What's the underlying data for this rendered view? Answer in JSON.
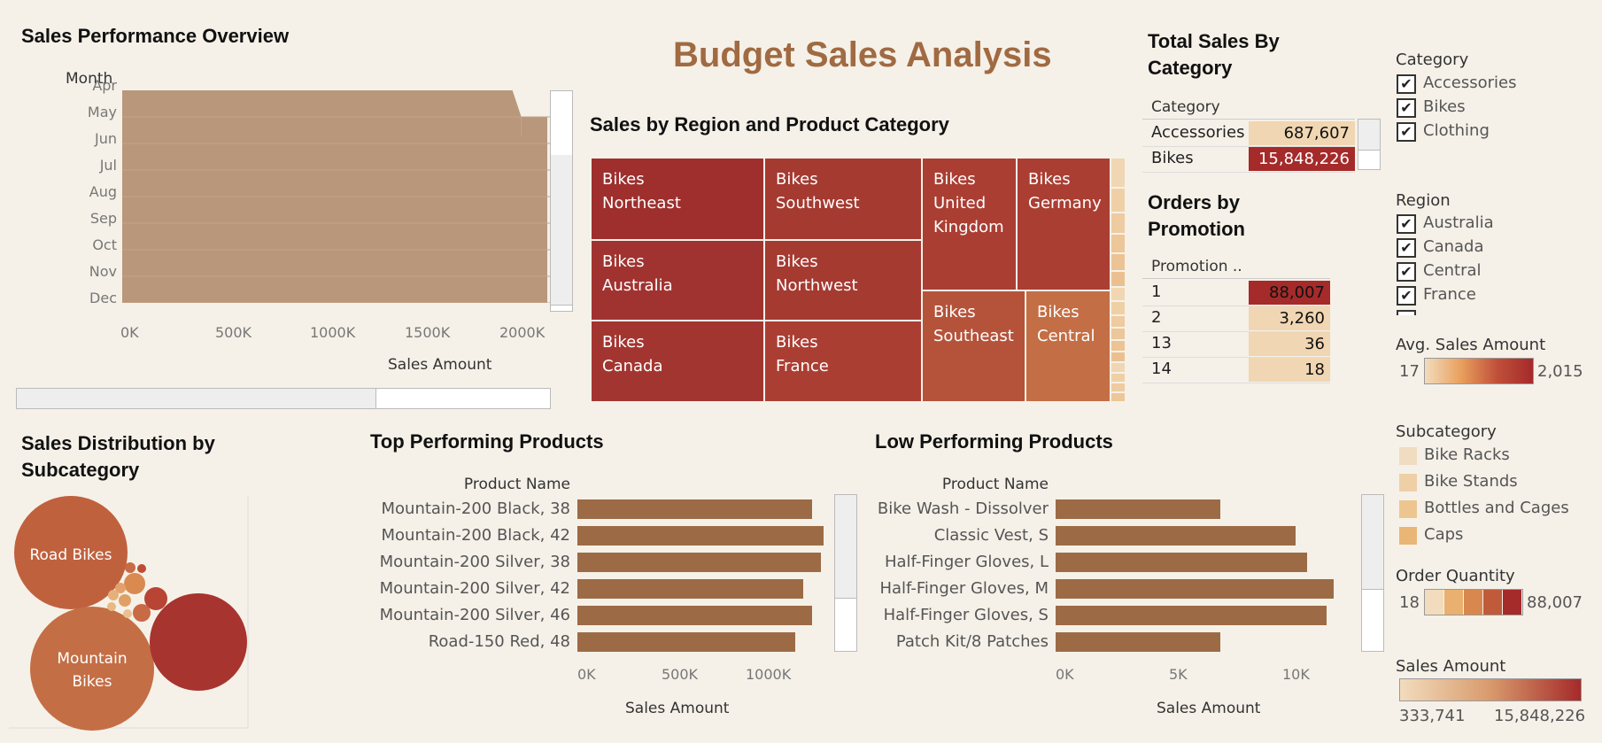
{
  "dashboard": {
    "title": "Budget Sales Analysis"
  },
  "performance": {
    "title": "Sales Performance Overview",
    "y_header": "Month",
    "months": [
      "Apr",
      "May",
      "Jun",
      "Jul",
      "Aug",
      "Sep",
      "Oct",
      "Nov",
      "Dec"
    ],
    "x_ticks": [
      "0K",
      "500K",
      "1000K",
      "1500K",
      "2000K"
    ],
    "x_title": "Sales Amount",
    "area_color": "#b9977a"
  },
  "treemap": {
    "title": "Sales by Region and Product Category",
    "cells": [
      {
        "label": "Bikes\nNortheast",
        "color": "#9e2f2d"
      },
      {
        "label": "Bikes\nSouthwest",
        "color": "#a53a31"
      },
      {
        "label": "Bikes\nUnited\nKingdom",
        "color": "#ab3e33"
      },
      {
        "label": "Bikes\nGermany",
        "color": "#ab3e33"
      },
      {
        "label": "Bikes\nAustralia",
        "color": "#a03330"
      },
      {
        "label": "Bikes\nNorthwest",
        "color": "#a53a31"
      },
      {
        "label": "Bikes\nCanada",
        "color": "#a33530"
      },
      {
        "label": "Bikes\nFrance",
        "color": "#ab3e33"
      },
      {
        "label": "Bikes\nSoutheast",
        "color": "#b5533a"
      },
      {
        "label": "Bikes\nCentral",
        "color": "#c46e45"
      }
    ]
  },
  "category_table": {
    "title_line1": "Total Sales By",
    "title_line2": "Category",
    "col_header": "Category",
    "rows": [
      {
        "name": "Accessories",
        "value": "687,607",
        "color": "#f0d6b2"
      },
      {
        "name": "Bikes",
        "value": "15,848,226",
        "color": "#a52a2a"
      }
    ]
  },
  "promotion_table": {
    "title_line1": "Orders by",
    "title_line2": "Promotion",
    "col_header": "Promotion ..",
    "rows": [
      {
        "name": "1",
        "value": "88,007",
        "color": "#a52a2a"
      },
      {
        "name": "2",
        "value": "3,260",
        "color": "#f0d6b2"
      },
      {
        "name": "13",
        "value": "36",
        "color": "#f0d6b2"
      },
      {
        "name": "14",
        "value": "18",
        "color": "#f0d6b2"
      }
    ]
  },
  "filters": {
    "category": {
      "title": "Category",
      "items": [
        "Accessories",
        "Bikes",
        "Clothing"
      ]
    },
    "region": {
      "title": "Region",
      "items": [
        "Australia",
        "Canada",
        "Central",
        "France"
      ]
    }
  },
  "legends": {
    "avg_sales": {
      "title": "Avg. Sales Amount",
      "min": "17",
      "max": "2,015"
    },
    "subcategory": {
      "title": "Subcategory",
      "items": [
        {
          "name": "Bike Racks",
          "color": "#f0dcc0"
        },
        {
          "name": "Bike Stands",
          "color": "#eecfa6"
        },
        {
          "name": "Bottles and Cages",
          "color": "#edc58f"
        },
        {
          "name": "Caps",
          "color": "#e9b676"
        }
      ]
    },
    "order_qty": {
      "title": "Order Quantity",
      "min": "18",
      "max": "88,007",
      "colors": [
        "#f2dcbd",
        "#e9b070",
        "#d8874f",
        "#bf5a3a",
        "#a52a2a"
      ]
    },
    "sales_amount": {
      "title": "Sales Amount",
      "min": "333,741",
      "max": "15,848,226"
    }
  },
  "bubbles": {
    "title_line1": "Sales Distribution by",
    "title_line2": "Subcategory",
    "labels": {
      "road": "Road Bikes",
      "mountain1": "Mountain",
      "mountain2": "Bikes"
    }
  },
  "top_products": {
    "title": "Top Performing Products",
    "col_header": "Product Name",
    "x_ticks": [
      "0K",
      "500K",
      "1000K"
    ],
    "x_title": "Sales Amount"
  },
  "low_products": {
    "title": "Low Performing Products",
    "col_header": "Product Name",
    "x_ticks": [
      "0K",
      "5K",
      "10K"
    ],
    "x_title": "Sales Amount"
  },
  "chart_data": [
    {
      "type": "area",
      "title": "Sales Performance Overview",
      "xlabel": "Sales Amount",
      "ylabel": "Month",
      "categories": [
        "Apr",
        "May",
        "Jun",
        "Jul",
        "Aug",
        "Sep",
        "Oct",
        "Nov",
        "Dec"
      ],
      "values": [
        2000000,
        2250000,
        2250000,
        2250000,
        2250000,
        2250000,
        2250000,
        2250000,
        2250000
      ],
      "xlim": [
        0,
        2250000
      ]
    },
    {
      "type": "bar",
      "title": "Top Performing Products",
      "xlabel": "Sales Amount",
      "ylabel": "Product Name",
      "categories": [
        "Mountain-200 Black, 38",
        "Mountain-200 Black, 42",
        "Mountain-200 Silver, 38",
        "Mountain-200 Silver, 42",
        "Mountain-200 Silver, 46",
        "Road-150 Red, 48"
      ],
      "values": [
        1380000,
        1450000,
        1430000,
        1330000,
        1380000,
        1280000
      ],
      "xlim": [
        0,
        1500000
      ]
    },
    {
      "type": "bar",
      "title": "Low Performing Products",
      "xlabel": "Sales Amount",
      "ylabel": "Product Name",
      "categories": [
        "Bike Wash - Dissolver",
        "Classic Vest, S",
        "Half-Finger Gloves, L",
        "Half-Finger Gloves, M",
        "Half-Finger Gloves, S",
        "Patch Kit/8 Patches"
      ],
      "values": [
        7600,
        11100,
        11600,
        12850,
        12500,
        7600
      ],
      "xlim": [
        0,
        13500
      ]
    }
  ]
}
